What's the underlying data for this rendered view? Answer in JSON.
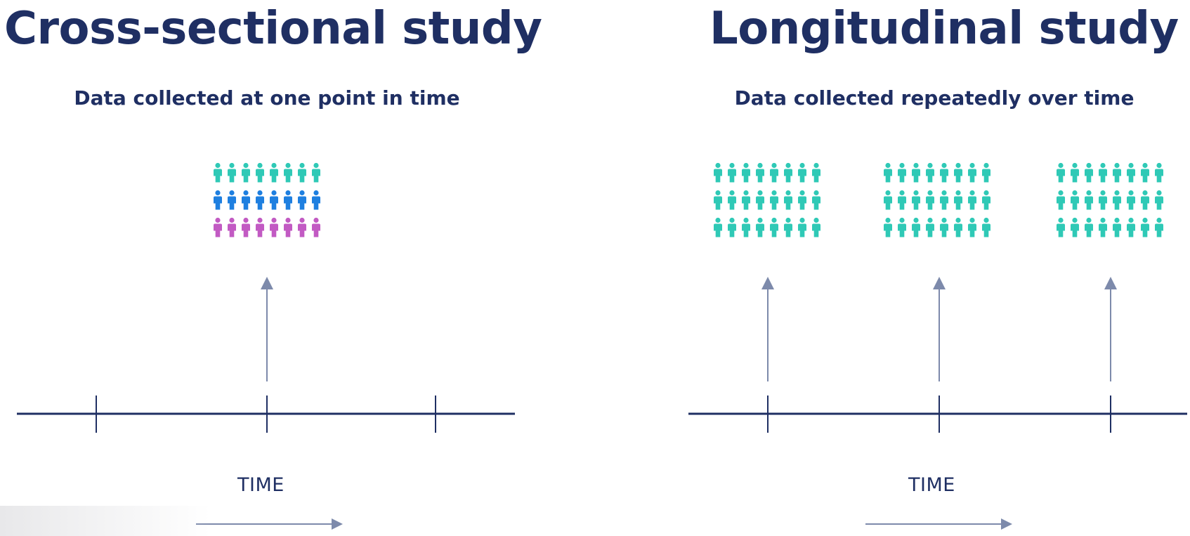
{
  "left": {
    "title": "Cross-sectional study",
    "subtitle": "Data collected at one point in time",
    "time_label": "TIME",
    "people_rows": [
      "#2fc9b6",
      "#1e7fe0",
      "#c25ac3"
    ],
    "people_per_row": 8,
    "tick_count": 3,
    "arrow_at_tick": 2
  },
  "right": {
    "title": "Longitudinal study",
    "subtitle": "Data collected repeatedly over time",
    "time_label": "TIME",
    "people_color": "#2fc9b6",
    "people_rows": 3,
    "people_per_row": 8,
    "group_count": 3,
    "tick_count": 3
  },
  "colors": {
    "navy": "#1f2f63",
    "arrow": "#7d8aab",
    "teal": "#2fc9b6",
    "blue": "#1e7fe0",
    "magenta": "#c25ac3"
  }
}
